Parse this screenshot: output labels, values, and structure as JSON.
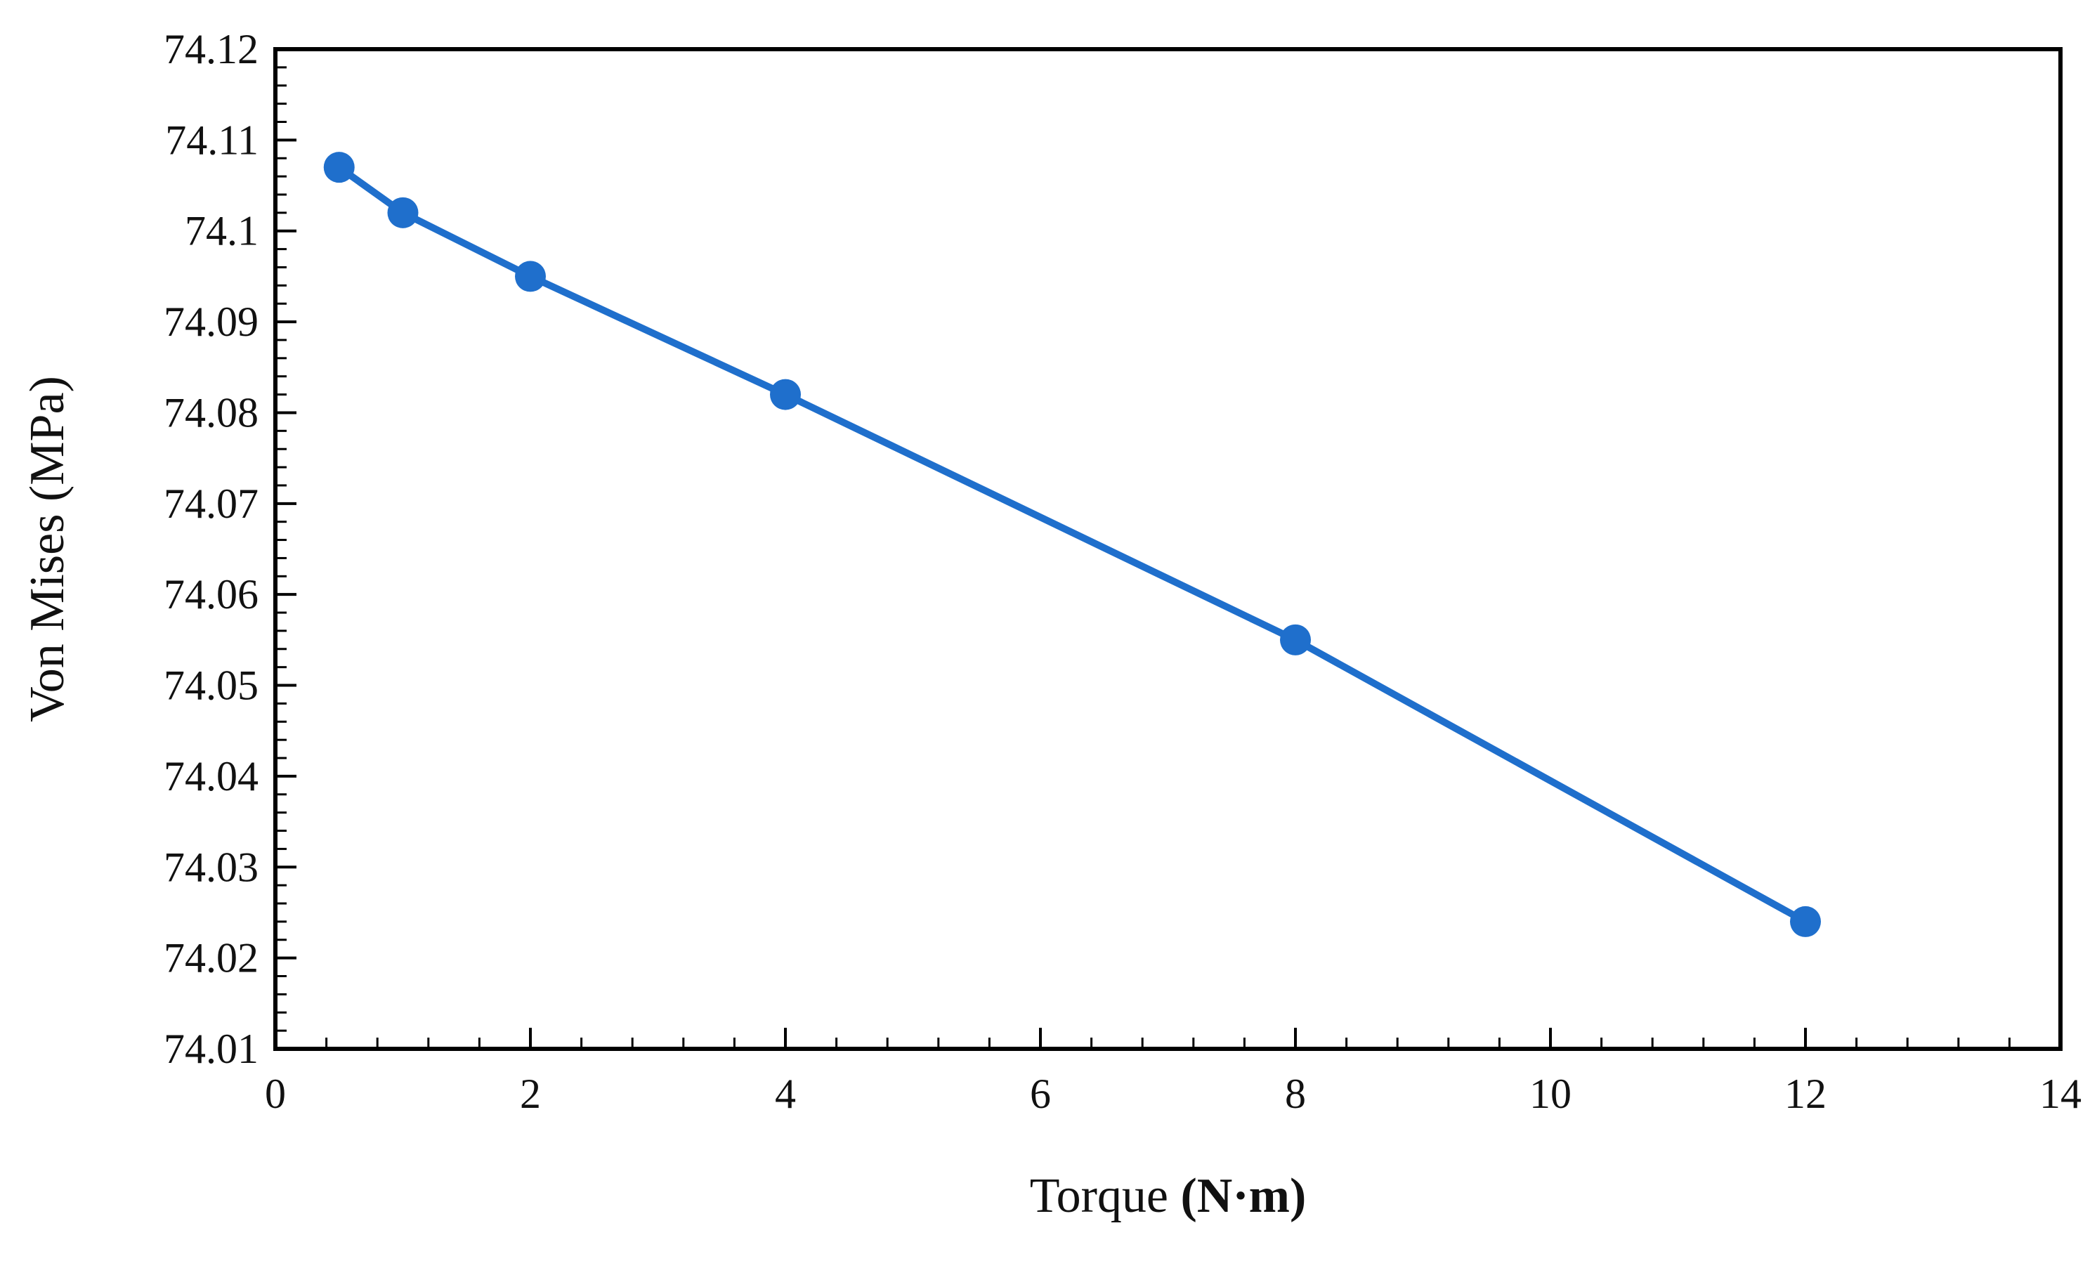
{
  "chart_data": {
    "type": "line",
    "title": "",
    "xlabel": "Torque",
    "xlabel_unit": "(N·m)",
    "ylabel": "Von Mises (MPa)",
    "xlim": [
      0,
      14
    ],
    "ylim": [
      74.01,
      74.12
    ],
    "x_ticks": [
      "0",
      "2",
      "4",
      "6",
      "8",
      "10",
      "12",
      "14"
    ],
    "y_ticks": [
      "74.01",
      "74.02",
      "74.03",
      "74.04",
      "74.05",
      "74.06",
      "74.07",
      "74.08",
      "74.09",
      "74.1",
      "74.11",
      "74.12"
    ],
    "grid": false,
    "legend": "none",
    "series": [
      {
        "x": [
          0.5,
          1,
          2,
          4,
          8,
          12
        ],
        "y": [
          74.107,
          74.102,
          74.095,
          74.082,
          74.055,
          74.024
        ],
        "color": "#1f6fcc",
        "marker": "circle"
      }
    ]
  }
}
